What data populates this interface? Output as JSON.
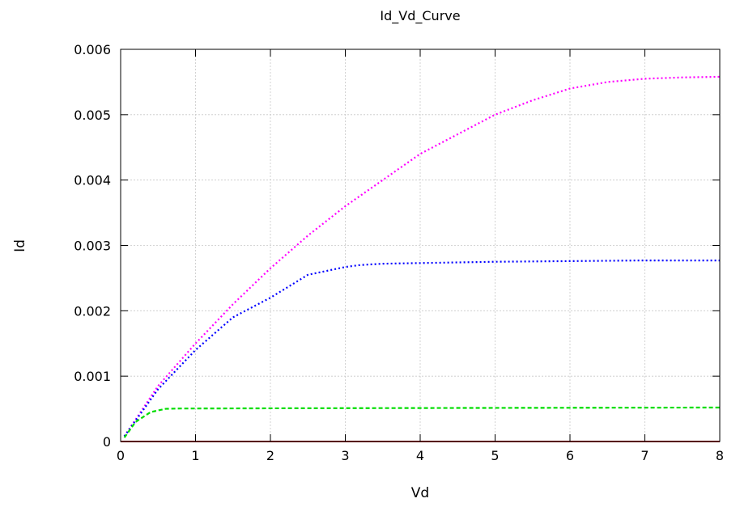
{
  "chart_data": {
    "type": "line",
    "title": "Id_Vd_Curve",
    "xlabel": "Vd",
    "ylabel": "Id",
    "xlim": [
      0,
      8
    ],
    "ylim": [
      0,
      0.006
    ],
    "x_ticks": [
      "0",
      "1",
      "2",
      "3",
      "4",
      "5",
      "6",
      "7",
      "8"
    ],
    "y_ticks": [
      "0",
      "0.001",
      "0.002",
      "0.003",
      "0.004",
      "0.005",
      "0.006"
    ],
    "grid": true,
    "legend": "none",
    "series": [
      {
        "color": "#ff00ff",
        "style": "dotted",
        "x": [
          0.05,
          0.5,
          1,
          1.5,
          2,
          2.5,
          3,
          3.5,
          4,
          4.5,
          5,
          5.5,
          6,
          6.5,
          7,
          7.5,
          8
        ],
        "y": [
          8e-05,
          0.00085,
          0.0015,
          0.0021,
          0.00265,
          0.00315,
          0.0036,
          0.004,
          0.0044,
          0.0047,
          0.005,
          0.00522,
          0.0054,
          0.0055,
          0.00555,
          0.00557,
          0.00558
        ]
      },
      {
        "color": "#0000ff",
        "style": "dotted",
        "x": [
          0.05,
          0.5,
          1,
          1.5,
          2,
          2.5,
          3,
          3.2,
          3.5,
          4,
          5,
          6,
          7,
          8
        ],
        "y": [
          8e-05,
          0.0008,
          0.0014,
          0.0019,
          0.0022,
          0.00255,
          0.00267,
          0.0027,
          0.00272,
          0.00273,
          0.00275,
          0.00276,
          0.00277,
          0.00277
        ]
      },
      {
        "color": "#00dd00",
        "style": "dashed",
        "x": [
          0.05,
          0.2,
          0.4,
          0.6,
          0.8,
          1,
          2,
          3,
          4,
          5,
          6,
          7,
          8
        ],
        "y": [
          6e-05,
          0.0003,
          0.00045,
          0.0005,
          0.000505,
          0.000505,
          0.000508,
          0.00051,
          0.000512,
          0.000514,
          0.000516,
          0.000518,
          0.00052
        ]
      },
      {
        "color": "#aa0000",
        "style": "solid",
        "x": [
          0,
          8
        ],
        "y": [
          0,
          0
        ]
      }
    ]
  }
}
